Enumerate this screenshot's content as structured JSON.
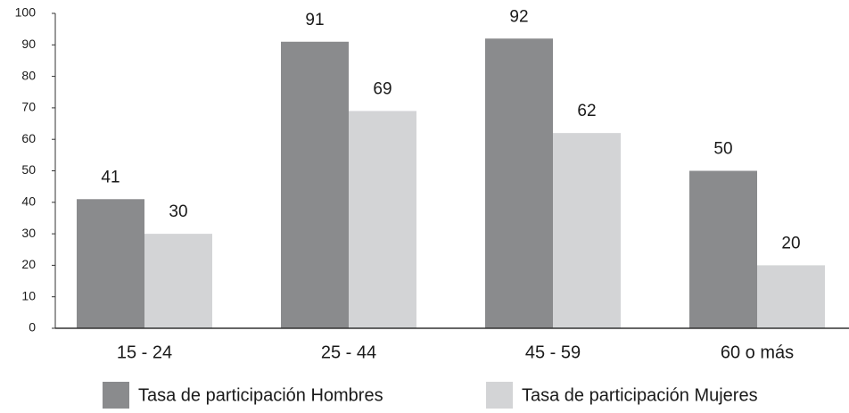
{
  "chart_data": {
    "type": "bar",
    "categories": [
      "15 - 24",
      "25 - 44",
      "45 - 59",
      "60 o más"
    ],
    "series": [
      {
        "name": "Tasa de participación Hombres",
        "color": "#8a8b8d",
        "values": [
          41,
          91,
          92,
          50
        ]
      },
      {
        "name": "Tasa de participación Mujeres",
        "color": "#d3d4d6",
        "values": [
          30,
          69,
          62,
          20
        ]
      }
    ],
    "ylim": [
      0,
      100
    ],
    "yticks": [
      0,
      10,
      20,
      30,
      40,
      50,
      60,
      70,
      80,
      90,
      100
    ],
    "grid": false
  }
}
